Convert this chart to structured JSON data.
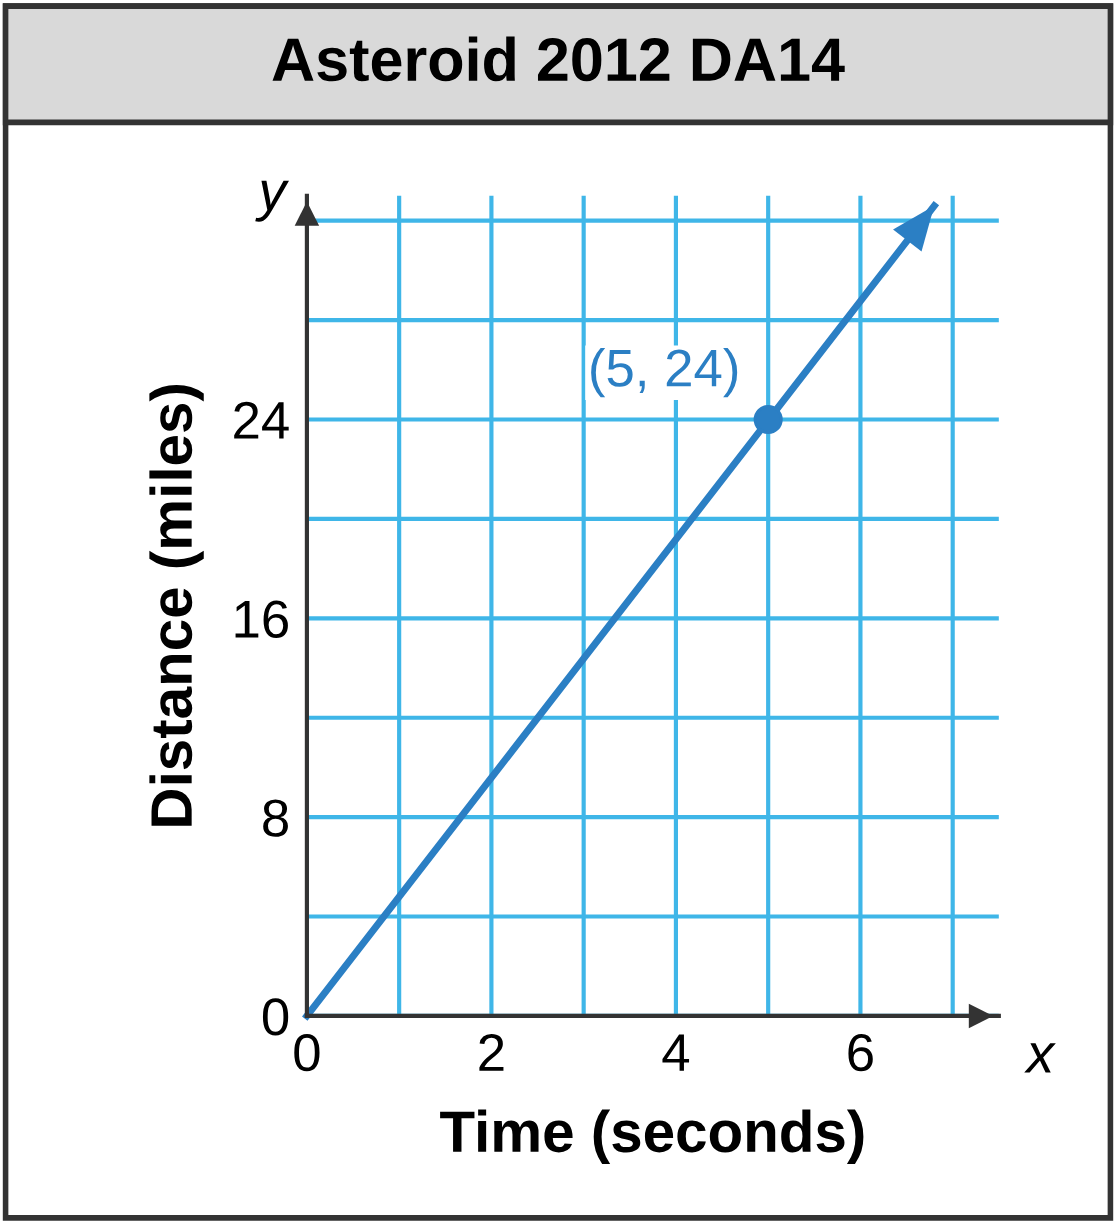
{
  "chart_data": {
    "type": "line",
    "title": "Asteroid 2012 DA14",
    "xlabel": "Time (seconds)",
    "ylabel": "Distance (miles)",
    "series": [
      {
        "color": "#2b7fc4",
        "x": [
          0,
          6.8
        ],
        "values": [
          0,
          32.6
        ]
      },
      {
        "type": "scatter",
        "color": "#2b7fc4",
        "x": [
          5
        ],
        "values": [
          24
        ],
        "marker": "circle"
      }
    ],
    "annotations": [
      {
        "text": "(5, 24)",
        "x": 5,
        "y": 24
      },
      "x",
      "y"
    ],
    "xlim": [
      0,
      7.5
    ],
    "ylim": [
      0,
      33
    ],
    "xticks": [
      0,
      {
        "value": 1,
        "label": null
      },
      2,
      {
        "value": 3,
        "label": null
      },
      4,
      {
        "value": 5,
        "label": null
      },
      6,
      {
        "value": 7,
        "label": null
      }
    ],
    "yticks": [
      0,
      {
        "value": 4,
        "label": null
      },
      8,
      {
        "value": 12,
        "label": null
      },
      16,
      {
        "value": 20,
        "label": null
      },
      24,
      {
        "value": 28,
        "label": null
      },
      {
        "value": 32,
        "label": null
      }
    ],
    "grid": true
  }
}
